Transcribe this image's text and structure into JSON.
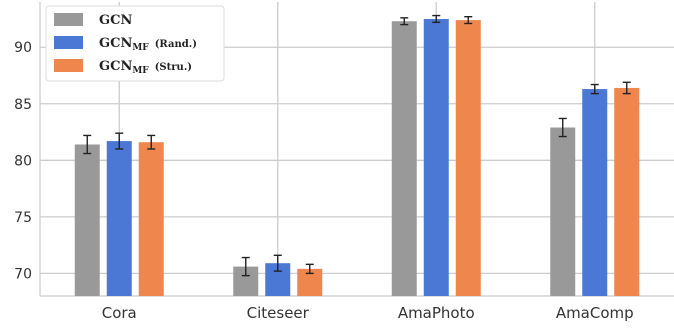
{
  "chart_data": {
    "type": "bar",
    "categories": [
      "Cora",
      "Citeseer",
      "AmaPhoto",
      "AmaComp"
    ],
    "ylim": [
      68,
      94
    ],
    "yticks": [
      70,
      75,
      80,
      85,
      90
    ],
    "grid": true,
    "legend_position": "top-left",
    "series": [
      {
        "name": "GCN",
        "legend": {
          "main": "GCN",
          "sub": "",
          "suffix": ""
        },
        "color": "#999999",
        "values": [
          81.4,
          70.6,
          92.3,
          82.9
        ],
        "errors": [
          0.8,
          0.8,
          0.3,
          0.8
        ]
      },
      {
        "name": "GCNMF (Rand.)",
        "legend": {
          "main": "GCN",
          "sub": "MF",
          "suffix": "(Rand.)"
        },
        "color": "#4a78d4",
        "values": [
          81.7,
          70.9,
          92.5,
          86.3
        ],
        "errors": [
          0.7,
          0.7,
          0.3,
          0.4
        ]
      },
      {
        "name": "GCNMF (Stru.)",
        "legend": {
          "main": "GCN",
          "sub": "MF",
          "suffix": "(Stru.)"
        },
        "color": "#ee864d",
        "values": [
          81.6,
          70.4,
          92.4,
          86.4
        ],
        "errors": [
          0.6,
          0.4,
          0.3,
          0.5
        ]
      }
    ]
  }
}
